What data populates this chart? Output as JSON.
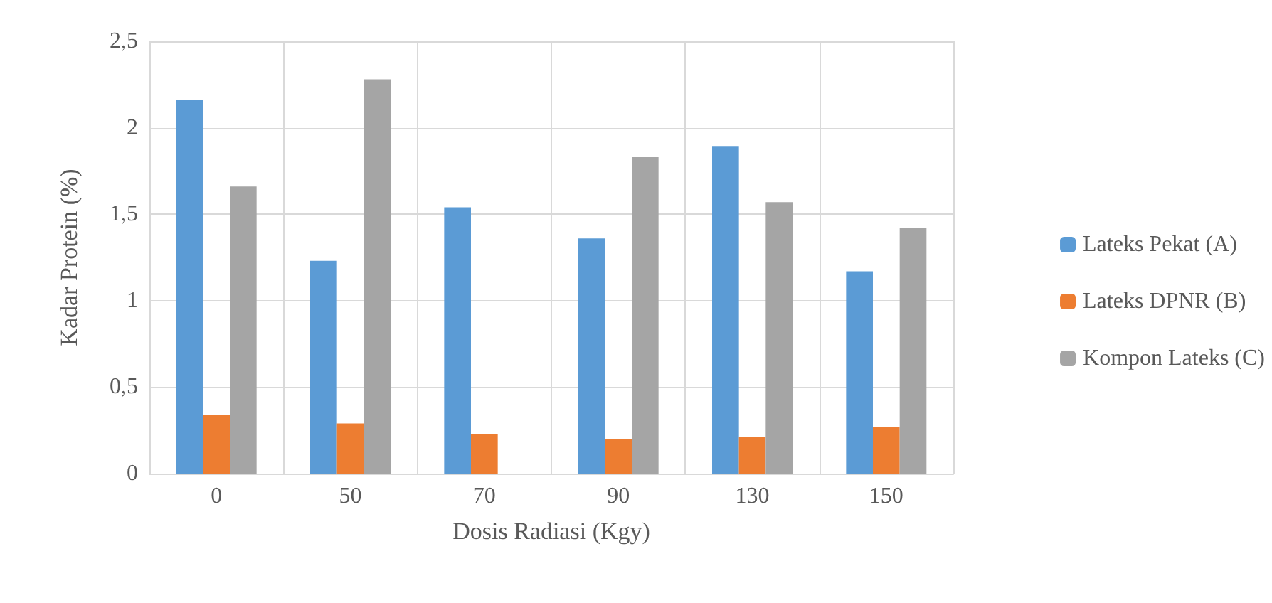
{
  "chart_data": {
    "type": "bar",
    "xlabel": "Dosis Radiasi (Kgy)",
    "ylabel": "Kadar Protein (%)",
    "categories": [
      "0",
      "50",
      "70",
      "90",
      "130",
      "150"
    ],
    "series": [
      {
        "name": "Lateks Pekat (A)",
        "color": "#5b9bd5",
        "values": [
          2.16,
          1.23,
          1.54,
          1.36,
          1.89,
          1.17
        ]
      },
      {
        "name": "Lateks DPNR (B)",
        "color": "#ed7d31",
        "values": [
          0.34,
          0.29,
          0.23,
          0.2,
          0.21,
          0.27
        ]
      },
      {
        "name": "Kompon Lateks (C)",
        "color": "#a5a5a5",
        "values": [
          1.66,
          2.28,
          null,
          1.83,
          1.57,
          1.42
        ]
      }
    ],
    "ylim": [
      0,
      2.5
    ],
    "yticks": [
      0,
      {
        "value": 0.5,
        "label": "0,5"
      },
      1,
      {
        "value": 1.5,
        "label": "1,5"
      },
      2,
      {
        "value": 2.5,
        "label": "2,5"
      }
    ],
    "grid": true,
    "legend": "right"
  }
}
